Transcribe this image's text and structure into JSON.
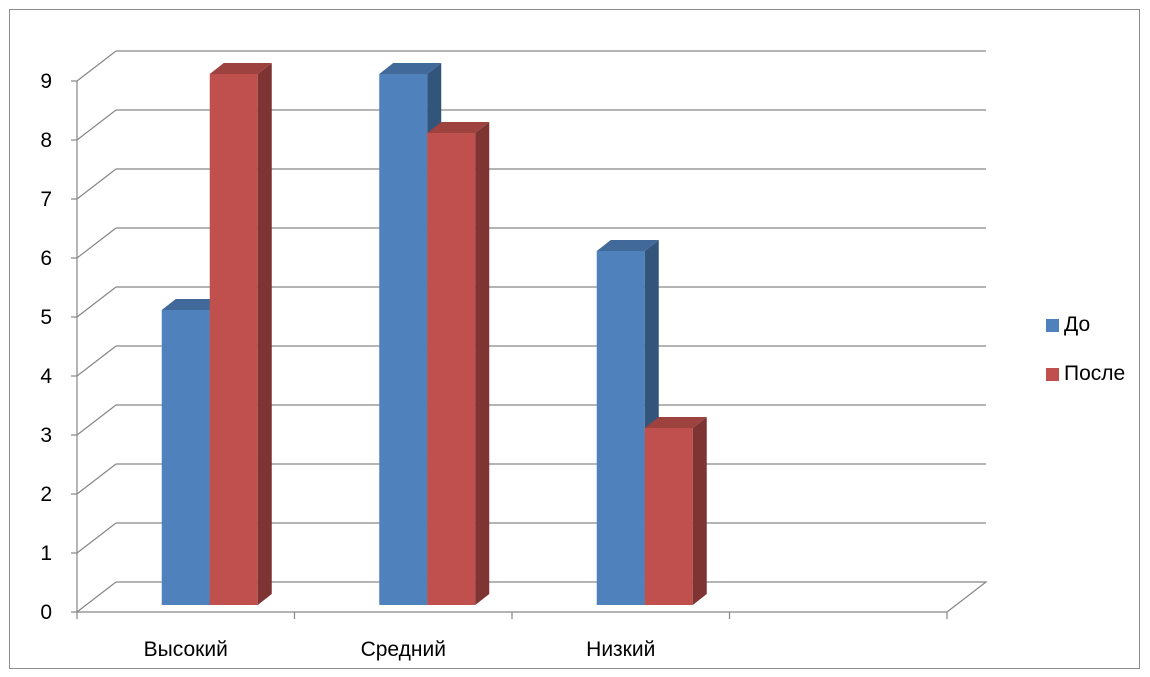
{
  "chart_data": {
    "type": "bar",
    "style": "3d-clustered-column",
    "categories": [
      "Высокий",
      "Средний",
      "Низкий",
      ""
    ],
    "series": [
      {
        "name": "До",
        "values": [
          5,
          9,
          6,
          null
        ],
        "color": "#4f81bd"
      },
      {
        "name": "После",
        "values": [
          9,
          8,
          3,
          null
        ],
        "color": "#c0504d"
      }
    ],
    "ylim": [
      0,
      9
    ],
    "yticks": [
      0,
      1,
      2,
      3,
      4,
      5,
      6,
      7,
      8,
      9
    ],
    "grid": true,
    "legend_position": "right"
  }
}
